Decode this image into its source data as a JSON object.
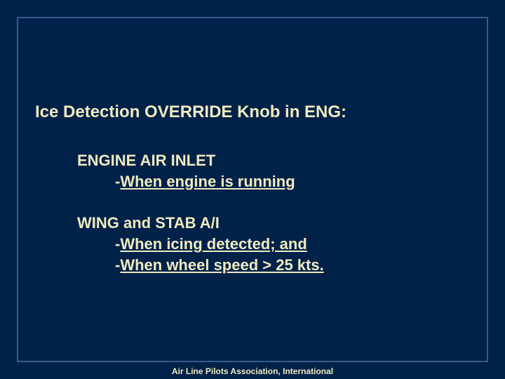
{
  "slide": {
    "background_color": "#002249",
    "border_color": "#355c8a",
    "text_color": "#f0eac0",
    "heading_fontsize": 24,
    "body_fontsize": 22,
    "footer_fontsize": 12,
    "heading": "Ice Detection OVERRIDE Knob in ENG:",
    "sections": [
      {
        "title": "ENGINE AIR INLET",
        "bullets": [
          {
            "dash": "-",
            "text": "When engine is running"
          }
        ]
      },
      {
        "title": "WING and STAB A/I",
        "bullets": [
          {
            "dash": "-",
            "text": "When icing detected; and"
          },
          {
            "dash": "-",
            "text": "When wheel speed > 25 kts."
          }
        ]
      }
    ],
    "footer": "Air Line Pilots Association, International"
  }
}
